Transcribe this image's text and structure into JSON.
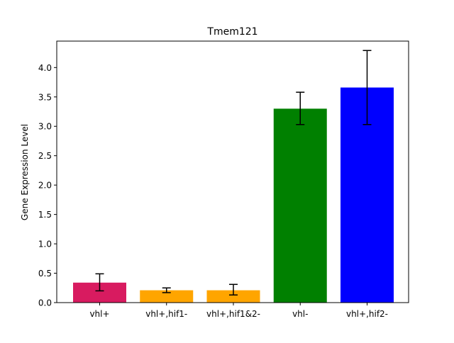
{
  "chart_data": {
    "type": "bar",
    "title": "Tmem121",
    "xlabel": "",
    "ylabel": "Gene Expression Level",
    "categories": [
      "vhl+",
      "vhl+,hif1-",
      "vhl+,hif1&2-",
      "vhl-",
      "vhl+,hif2-"
    ],
    "values": [
      0.34,
      0.21,
      0.21,
      3.3,
      3.66
    ],
    "error_low": [
      0.2,
      0.17,
      0.13,
      3.03,
      3.03
    ],
    "error_high": [
      0.49,
      0.25,
      0.31,
      3.58,
      4.29
    ],
    "colors": [
      "#d81b60",
      "#ffa500",
      "#ffa500",
      "#008000",
      "#0000ff"
    ],
    "ylim": [
      0,
      4.45
    ],
    "yticks": [
      0.0,
      0.5,
      1.0,
      1.5,
      2.0,
      2.5,
      3.0,
      3.5,
      4.0
    ],
    "ytick_labels": [
      "0.0",
      "0.5",
      "1.0",
      "1.5",
      "2.0",
      "2.5",
      "3.0",
      "3.5",
      "4.0"
    ],
    "grid": false,
    "legend": "none"
  }
}
